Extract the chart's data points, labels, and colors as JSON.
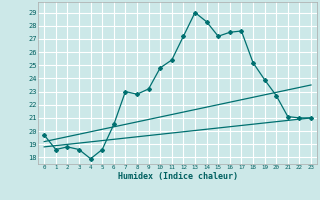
{
  "xlabel": "Humidex (Indice chaleur)",
  "ylabel": "",
  "bg_color": "#cce8e8",
  "grid_color": "#ffffff",
  "line_color": "#007070",
  "x_ticks": [
    0,
    1,
    2,
    3,
    4,
    5,
    6,
    7,
    8,
    9,
    10,
    11,
    12,
    13,
    14,
    15,
    16,
    17,
    18,
    19,
    20,
    21,
    22,
    23
  ],
  "y_ticks": [
    18,
    19,
    20,
    21,
    22,
    23,
    24,
    25,
    26,
    27,
    28,
    29
  ],
  "ylim": [
    17.5,
    29.8
  ],
  "xlim": [
    -0.5,
    23.5
  ],
  "line1_x": [
    0,
    1,
    2,
    3,
    4,
    5,
    6,
    7,
    8,
    9,
    10,
    11,
    12,
    13,
    14,
    15,
    16,
    17,
    18,
    19,
    20,
    21,
    22,
    23
  ],
  "line1_y": [
    19.7,
    18.6,
    18.8,
    18.6,
    17.9,
    18.6,
    20.5,
    23.0,
    22.8,
    23.2,
    24.8,
    25.4,
    27.2,
    29.0,
    28.3,
    27.2,
    27.5,
    27.6,
    25.2,
    23.9,
    22.7,
    21.1,
    21.0,
    21.0
  ],
  "line2_x": [
    0,
    23
  ],
  "line2_y": [
    19.2,
    23.5
  ],
  "line3_x": [
    0,
    23
  ],
  "line3_y": [
    18.8,
    21.0
  ]
}
